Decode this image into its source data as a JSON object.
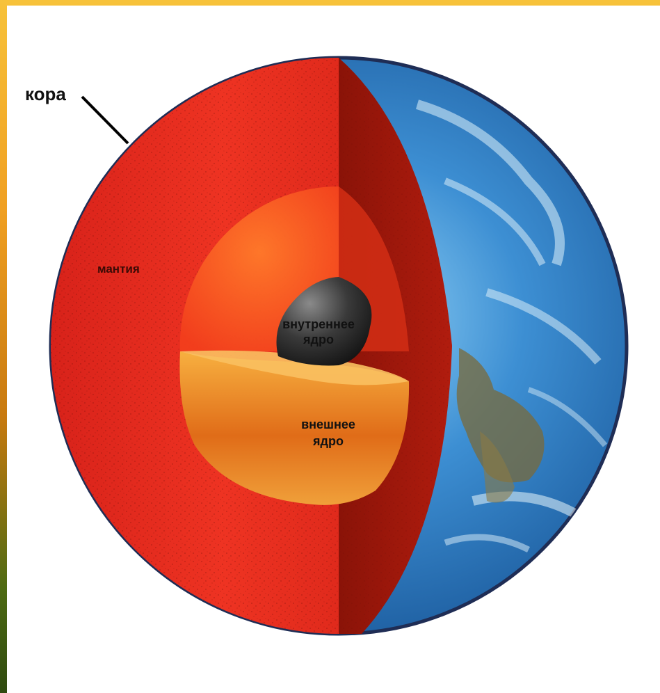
{
  "labels": {
    "crust": "кора",
    "mantle": "мантия",
    "inner_core_line1": "внутреннее",
    "inner_core_line2": "ядро",
    "outer_core_line1": "внешнее",
    "outer_core_line2": "ядро"
  },
  "colors": {
    "background": "#ffffff",
    "border_gradient_top": "#f7c23a",
    "mantle": "#e8281a",
    "mantle_dark": "#8c1208",
    "outer_core": "#f2a23a",
    "inner_core": "#2b2b2b",
    "ocean": "#2f7fc4",
    "land": "#7a6a3a"
  },
  "icons": {
    "earth_cutaway": "earth-cutaway-illustration"
  }
}
